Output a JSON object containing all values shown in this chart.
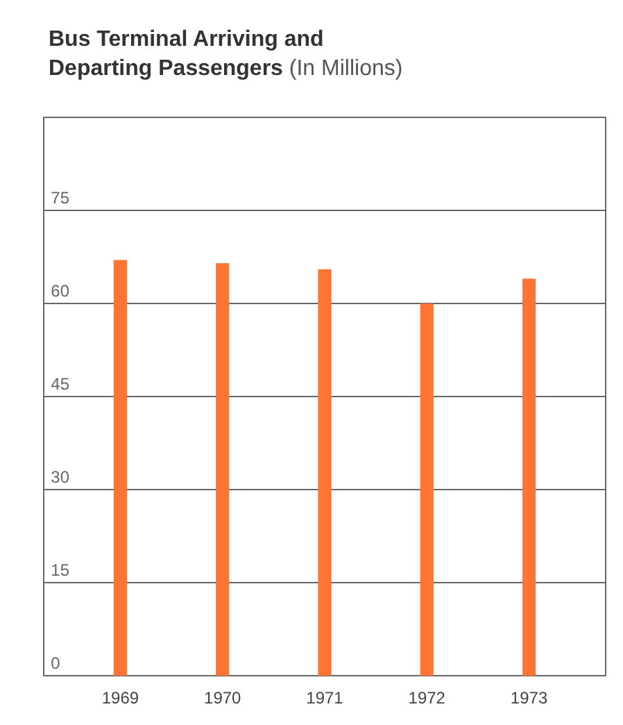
{
  "chart_data": {
    "type": "bar",
    "title": "Bus Terminal Arriving and Departing Passengers",
    "subtitle": "(In Millions)",
    "categories": [
      "1969",
      "1970",
      "1971",
      "1972",
      "1973"
    ],
    "values": [
      67,
      66.5,
      65.5,
      60,
      64
    ],
    "color": "#ff7433",
    "ylim": [
      0,
      90
    ],
    "yticks": [
      0,
      15,
      30,
      45,
      60,
      75
    ],
    "grid": "y"
  }
}
